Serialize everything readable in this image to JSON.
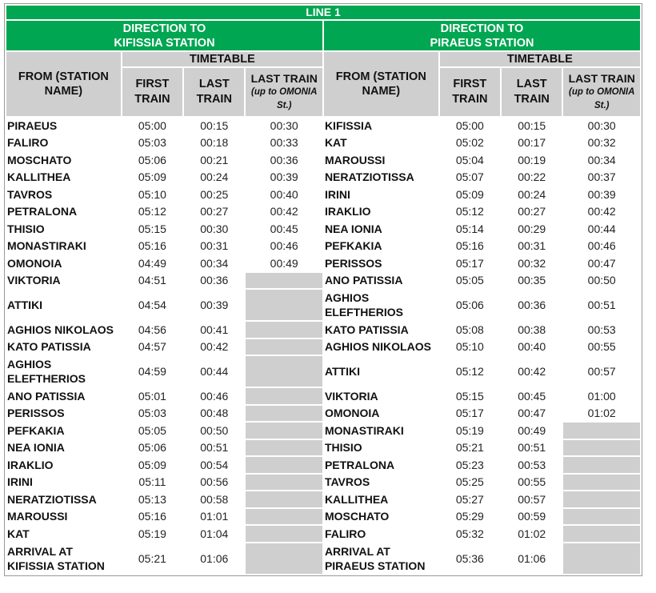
{
  "title": "LINE 1",
  "directions": [
    {
      "heading_line1": "DIRECTION TO",
      "heading_line2": "KIFISSIA STATION"
    },
    {
      "heading_line1": "DIRECTION TO",
      "heading_line2": "PIRAEUS STATION"
    }
  ],
  "headers": {
    "from": "FROM (STATION NAME)",
    "timetable": "TIMETABLE",
    "first_train": "FIRST TRAIN",
    "last_train": "LAST TRAIN",
    "last_train_omonia": "LAST TRAIN",
    "last_train_omonia_sub": "(up to OMONIA St.)"
  },
  "rows": [
    {
      "l_station": "PIRAEUS",
      "l_first": "05:00",
      "l_last": "00:15",
      "l_omonia": "00:30",
      "r_station": "KIFISSIA",
      "r_first": "05:00",
      "r_last": "00:15",
      "r_omonia": "00:30"
    },
    {
      "l_station": "FALIRO",
      "l_first": "05:03",
      "l_last": "00:18",
      "l_omonia": "00:33",
      "r_station": "KAT",
      "r_first": "05:02",
      "r_last": "00:17",
      "r_omonia": "00:32"
    },
    {
      "l_station": "MOSCHATO",
      "l_first": "05:06",
      "l_last": "00:21",
      "l_omonia": "00:36",
      "r_station": "MAROUSSI",
      "r_first": "05:04",
      "r_last": "00:19",
      "r_omonia": "00:34"
    },
    {
      "l_station": "KALLITHEA",
      "l_first": "05:09",
      "l_last": "00:24",
      "l_omonia": "00:39",
      "r_station": "NERATZIOTISSA",
      "r_first": "05:07",
      "r_last": "00:22",
      "r_omonia": "00:37"
    },
    {
      "l_station": "TAVROS",
      "l_first": "05:10",
      "l_last": "00:25",
      "l_omonia": "00:40",
      "r_station": "IRINI",
      "r_first": "05:09",
      "r_last": "00:24",
      "r_omonia": "00:39"
    },
    {
      "l_station": "PETRALONA",
      "l_first": "05:12",
      "l_last": "00:27",
      "l_omonia": "00:42",
      "r_station": "IRAKLIO",
      "r_first": "05:12",
      "r_last": "00:27",
      "r_omonia": "00:42"
    },
    {
      "l_station": "THISIO",
      "l_first": "05:15",
      "l_last": "00:30",
      "l_omonia": "00:45",
      "r_station": "NEA IONIA",
      "r_first": "05:14",
      "r_last": "00:29",
      "r_omonia": "00:44"
    },
    {
      "l_station": "MONASTIRAKI",
      "l_first": "05:16",
      "l_last": "00:31",
      "l_omonia": "00:46",
      "r_station": "PEFKAKIA",
      "r_first": "05:16",
      "r_last": "00:31",
      "r_omonia": "00:46"
    },
    {
      "l_station": "OMONOIA",
      "l_first": "04:49",
      "l_last": "00:34",
      "l_omonia": "00:49",
      "r_station": "PERISSOS",
      "r_first": "05:17",
      "r_last": "00:32",
      "r_omonia": "00:47"
    },
    {
      "l_station": "VIKTORIA",
      "l_first": "04:51",
      "l_last": "00:36",
      "l_omonia": null,
      "r_station": "ANO PATISSIA",
      "r_first": "05:05",
      "r_last": "00:35",
      "r_omonia": "00:50"
    },
    {
      "l_station": "ATTIKI",
      "l_first": "04:54",
      "l_last": "00:39",
      "l_omonia": null,
      "r_station": "AGHIOS ELEFTHERIOS",
      "r_first": "05:06",
      "r_last": "00:36",
      "r_omonia": "00:51",
      "tall": true
    },
    {
      "l_station": "AGHIOS NIKOLAOS",
      "l_first": "04:56",
      "l_last": "00:41",
      "l_omonia": null,
      "r_station": "KATO PATISSIA",
      "r_first": "05:08",
      "r_last": "00:38",
      "r_omonia": "00:53"
    },
    {
      "l_station": "KATO PATISSIA",
      "l_first": "04:57",
      "l_last": "00:42",
      "l_omonia": null,
      "r_station": "AGHIOS NIKOLAOS",
      "r_first": "05:10",
      "r_last": "00:40",
      "r_omonia": "00:55"
    },
    {
      "l_station": "AGHIOS ELEFTHERIOS",
      "l_first": "04:59",
      "l_last": "00:44",
      "l_omonia": null,
      "r_station": "ATTIKI",
      "r_first": "05:12",
      "r_last": "00:42",
      "r_omonia": "00:57",
      "tall": true
    },
    {
      "l_station": "ANO PATISSIA",
      "l_first": "05:01",
      "l_last": "00:46",
      "l_omonia": null,
      "r_station": "VIKTORIA",
      "r_first": "05:15",
      "r_last": "00:45",
      "r_omonia": "01:00"
    },
    {
      "l_station": "PERISSOS",
      "l_first": "05:03",
      "l_last": "00:48",
      "l_omonia": null,
      "r_station": "OMONOIA",
      "r_first": "05:17",
      "r_last": "00:47",
      "r_omonia": "01:02"
    },
    {
      "l_station": "PEFKAKIA",
      "l_first": "05:05",
      "l_last": "00:50",
      "l_omonia": null,
      "r_station": "MONASTIRAKI",
      "r_first": "05:19",
      "r_last": "00:49",
      "r_omonia": null
    },
    {
      "l_station": "NEA IONIA",
      "l_first": "05:06",
      "l_last": "00:51",
      "l_omonia": null,
      "r_station": "THISIO",
      "r_first": "05:21",
      "r_last": "00:51",
      "r_omonia": null
    },
    {
      "l_station": "IRAKLIO",
      "l_first": "05:09",
      "l_last": "00:54",
      "l_omonia": null,
      "r_station": "PETRALONA",
      "r_first": "05:23",
      "r_last": "00:53",
      "r_omonia": null
    },
    {
      "l_station": "IRINI",
      "l_first": "05:11",
      "l_last": "00:56",
      "l_omonia": null,
      "r_station": "TAVROS",
      "r_first": "05:25",
      "r_last": "00:55",
      "r_omonia": null
    },
    {
      "l_station": "NERATZIOTISSA",
      "l_first": "05:13",
      "l_last": "00:58",
      "l_omonia": null,
      "r_station": "KALLITHEA",
      "r_first": "05:27",
      "r_last": "00:57",
      "r_omonia": null
    },
    {
      "l_station": "MAROUSSI",
      "l_first": "05:16",
      "l_last": "01:01",
      "l_omonia": null,
      "r_station": "MOSCHATO",
      "r_first": "05:29",
      "r_last": "00:59",
      "r_omonia": null
    },
    {
      "l_station": "KAT",
      "l_first": "05:19",
      "l_last": "01:04",
      "l_omonia": null,
      "r_station": "FALIRO",
      "r_first": "05:32",
      "r_last": "01:02",
      "r_omonia": null
    },
    {
      "l_station": "ARRIVAL AT KIFISSIA STATION",
      "l_first": "05:21",
      "l_last": "01:06",
      "l_omonia": null,
      "r_station": "ARRIVAL AT PIRAEUS STATION",
      "r_first": "05:36",
      "r_last": "01:06",
      "r_omonia": null,
      "tall": true
    }
  ],
  "colors": {
    "header_green": "#00a651",
    "header_grey": "#cfcfcf"
  }
}
